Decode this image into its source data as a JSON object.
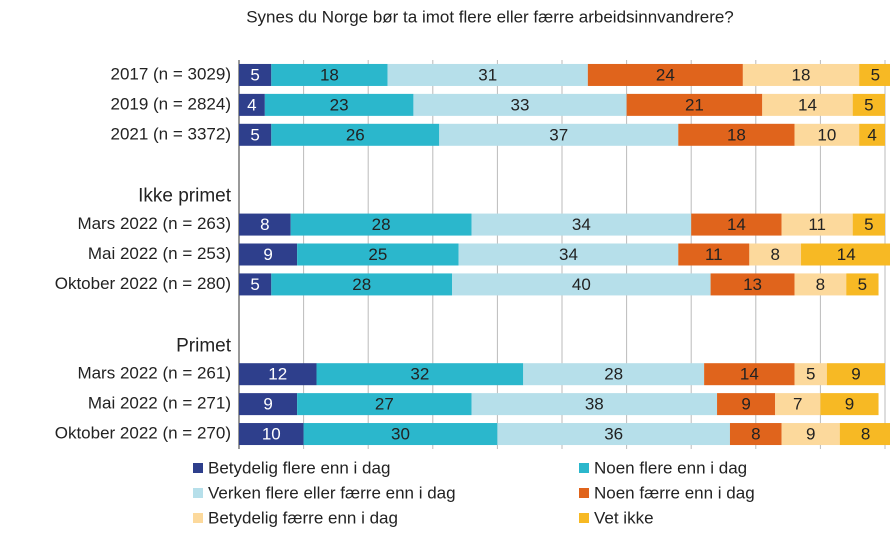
{
  "chart_data": {
    "type": "stacked_barh",
    "title": "Synes du Norge bør ta imot flere eller færre arbeidsinnvandrere?",
    "categories": [
      "2017 (n = 3029)",
      "2019 (n = 2824)",
      "2021 (n = 3372)",
      null,
      "Ikke primet",
      "Mars 2022 (n = 263)",
      "Mai 2022 (n = 253)",
      "Oktober 2022 (n = 280)",
      null,
      "Primet",
      "Mars 2022 (n = 261)",
      "Mai 2022 (n = 271)",
      "Oktober 2022 (n = 270)"
    ],
    "series": [
      {
        "name": "Betydelig flere enn i dag",
        "color": "#2e3f8c",
        "values": [
          5,
          4,
          5,
          null,
          null,
          8,
          9,
          5,
          null,
          null,
          12,
          9,
          10
        ]
      },
      {
        "name": "Noen flere enn i dag",
        "color": "#2bb7cc",
        "values": [
          18,
          23,
          26,
          null,
          null,
          28,
          25,
          28,
          null,
          null,
          32,
          27,
          30
        ]
      },
      {
        "name": "Verken flere eller færre enn i dag",
        "color": "#b6dfea",
        "values": [
          31,
          33,
          37,
          null,
          null,
          34,
          34,
          40,
          null,
          null,
          28,
          38,
          36
        ]
      },
      {
        "name": "Noen færre enn i dag",
        "color": "#e0641c",
        "values": [
          24,
          21,
          18,
          null,
          null,
          14,
          11,
          13,
          null,
          null,
          14,
          9,
          8
        ]
      },
      {
        "name": "Betydelig færre enn i dag",
        "color": "#fcd99c",
        "values": [
          18,
          14,
          10,
          null,
          null,
          11,
          8,
          8,
          null,
          null,
          5,
          7,
          9
        ]
      },
      {
        "name": "Vet ikke",
        "color": "#f7b924",
        "values": [
          5,
          5,
          4,
          null,
          null,
          5,
          14,
          5,
          null,
          null,
          9,
          9,
          8
        ]
      }
    ],
    "xlim": [
      0,
      100
    ],
    "xticks": [
      0,
      10,
      20,
      30,
      40,
      50,
      60,
      70,
      80,
      90,
      100
    ],
    "grid": true
  }
}
